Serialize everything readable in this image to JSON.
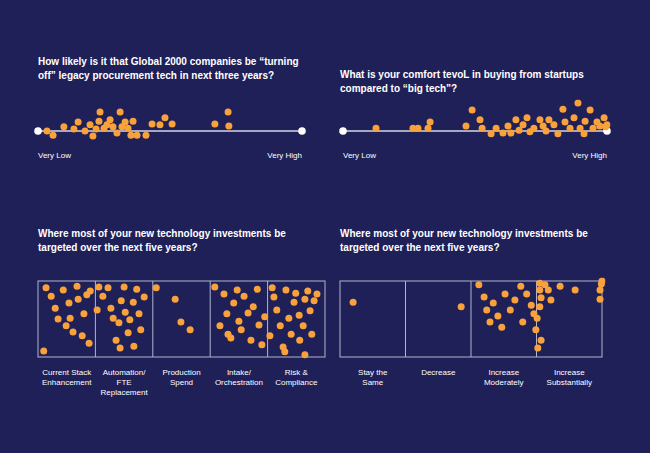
{
  "chart_data": [
    {
      "type": "scatter",
      "title": "How likely is it that Global 2000 companies be “turning off” legacy procurement tech in next three years?",
      "x": [
        3.4,
        5.7,
        9.8,
        13.6,
        15.2,
        17.8,
        19.7,
        20.8,
        22.0,
        23.1,
        23.5,
        25.0,
        26.1,
        27.3,
        28.4,
        29.9,
        31.1,
        31.8,
        33.0,
        34.1,
        35.2,
        36.0,
        37.5,
        40.9,
        43.2,
        46.2,
        48.1,
        50.8,
        67.0,
        72.0,
        72.3
      ],
      "values": [
        0,
        -0.6,
        0.6,
        0.3,
        1.3,
        0,
        0.9,
        -0.7,
        0.3,
        1.4,
        2.7,
        0.4,
        0.9,
        1.6,
        0.6,
        -0.3,
        2.7,
        0.6,
        1.3,
        0.4,
        -0.6,
        1.4,
        -0.6,
        -0.6,
        1.0,
        0.9,
        1.9,
        1.0,
        1.0,
        2.7,
        0.7
      ],
      "color": "#f9a23b",
      "xlim": [
        0,
        100
      ],
      "xticks": [
        {
          "value": 0,
          "label": "Very Low"
        },
        {
          "value": 100,
          "label": "Very High"
        }
      ],
      "ylim": [
        -2,
        4
      ],
      "tick_labels": "x",
      "grid": false
    },
    {
      "type": "scatter",
      "title": "What is your comfort tevoL in buying from startups compared to “big tech”?",
      "x": [
        12.5,
        26.5,
        28.4,
        32.2,
        33.0,
        46.6,
        48.9,
        51.9,
        52.7,
        56.1,
        58.0,
        60.6,
        62.5,
        63.6,
        65.5,
        66.7,
        68.2,
        69.7,
        70.8,
        72.3,
        74.6,
        75.8,
        76.9,
        78.0,
        79.9,
        81.4,
        83.3,
        84.1,
        86.0,
        87.5,
        89.0,
        89.8,
        91.3,
        91.7,
        93.6,
        94.7,
        96.2,
        97.3,
        98.9,
        99.5,
        100
      ],
      "values": [
        0.4,
        0.4,
        0.4,
        0.4,
        1.3,
        0.7,
        3.0,
        1.6,
        0.4,
        -0.4,
        0.4,
        -0.3,
        0.7,
        -0.3,
        1.6,
        0.1,
        0.9,
        1.9,
        -0.1,
        0.4,
        1.6,
        0.7,
        0,
        1.6,
        0.9,
        -0.4,
        3.1,
        1.3,
        0.4,
        1.9,
        4.0,
        0.4,
        -0.4,
        1.4,
        3.0,
        0.4,
        1.3,
        0.7,
        1.9,
        0.6,
        0.9
      ],
      "color": "#f9a23b",
      "xlim": [
        0,
        100
      ],
      "xticks": [
        {
          "value": 0,
          "label": "Very Low"
        },
        {
          "value": 100,
          "label": "Very High"
        }
      ],
      "ylim": [
        -2,
        4
      ],
      "tick_labels": "x",
      "grid": false
    },
    {
      "type": "strip",
      "title": "Where most of your new technology investments be targeted over the next five years?",
      "x": [
        0.1,
        0.14,
        0.23,
        0.3,
        0.35,
        0.44,
        0.49,
        0.54,
        0.56,
        0.61,
        0.68,
        0.7,
        0.77,
        0.8,
        0.85,
        0.89,
        0.91,
        1.06,
        1.13,
        1.22,
        1.27,
        1.31,
        1.36,
        1.41,
        1.45,
        1.5,
        1.52,
        1.57,
        1.6,
        1.66,
        1.67,
        1.72,
        1.76,
        1.79,
        1.85,
        1.03,
        1.43,
        2.06,
        2.39,
        2.49,
        2.65,
        3.08,
        3.17,
        3.24,
        3.29,
        3.36,
        3.41,
        3.47,
        3.5,
        3.54,
        3.59,
        3.66,
        3.71,
        3.75,
        3.82,
        3.85,
        3.9,
        3.95,
        3.31,
        4.08,
        4.11,
        4.16,
        4.22,
        4.27,
        4.32,
        4.37,
        4.41,
        4.46,
        4.49,
        4.55,
        4.56,
        4.62,
        4.65,
        4.7,
        4.74,
        4.77,
        4.81,
        4.86,
        4.3,
        4.04,
        4.65
      ],
      "values": [
        0.08,
        0.91,
        0.8,
        0.64,
        0.5,
        0.88,
        0.41,
        0.71,
        0.51,
        0.33,
        0.93,
        0.76,
        0.28,
        0.57,
        0.82,
        0.18,
        0.87,
        0.92,
        0.8,
        0.91,
        0.64,
        0.51,
        0.22,
        0.45,
        0.74,
        0.92,
        0.59,
        0.32,
        0.49,
        0.72,
        0.14,
        0.89,
        0.57,
        0.36,
        0.79,
        0.62,
        0.12,
        0.91,
        0.76,
        0.46,
        0.36,
        0.92,
        0.41,
        0.83,
        0.57,
        0.25,
        0.71,
        0.88,
        0.47,
        0.36,
        0.8,
        0.58,
        0.22,
        0.66,
        0.89,
        0.42,
        0.16,
        0.53,
        0.3,
        0.91,
        0.79,
        0.62,
        0.41,
        0.13,
        0.88,
        0.51,
        0.3,
        0.72,
        0.84,
        0.55,
        0.22,
        0.41,
        0.76,
        0.87,
        0.61,
        0.3,
        0.74,
        0.83,
        0.07,
        0.28,
        0.03
      ],
      "color": "#f9a23b",
      "xlim": [
        0,
        5
      ],
      "xticks": [
        {
          "value": 0.5,
          "label": "Current Stack Enhancement"
        },
        {
          "value": 1.5,
          "label": "Automation/ FTE Replacement"
        },
        {
          "value": 2.5,
          "label": "Production Spend"
        },
        {
          "value": 3.5,
          "label": "Intake/ Orchestration"
        },
        {
          "value": 4.5,
          "label": "Risk & Compliance"
        }
      ],
      "ylim": [
        0,
        1
      ],
      "tick_labels": "x",
      "grid": false
    },
    {
      "type": "strip",
      "title": "Where most of your new technology investments be targeted over the next five years?",
      "x": [
        0.2,
        1.85,
        2.12,
        2.2,
        2.24,
        2.29,
        2.34,
        2.41,
        2.47,
        2.52,
        2.6,
        2.67,
        2.76,
        2.79,
        2.85,
        2.92,
        2.96,
        2.99,
        3.02,
        3.05,
        3.05,
        3.07,
        3.05,
        3.01,
        3.07,
        3.13,
        3.18,
        3.22,
        3.36,
        3.59,
        3.97,
        3.99,
        4.0,
        3.97
      ],
      "values": [
        0.72,
        0.66,
        0.95,
        0.79,
        0.62,
        0.46,
        0.71,
        0.54,
        0.39,
        0.83,
        0.62,
        0.75,
        0.93,
        0.46,
        0.83,
        0.68,
        0.57,
        0.36,
        0.12,
        0.97,
        0.88,
        0.78,
        0.66,
        0.51,
        0.22,
        0.95,
        0.88,
        0.75,
        0.93,
        0.88,
        0.88,
        0.96,
        1.0,
        0.76
      ],
      "color": "#f9a23b",
      "xlim": [
        0,
        4
      ],
      "xticks": [
        {
          "value": 0.5,
          "label": "Stay the Same"
        },
        {
          "value": 1.5,
          "label": "Decrease"
        },
        {
          "value": 2.5,
          "label": "Increase Moderately"
        },
        {
          "value": 3.5,
          "label": "Increase Substantially"
        }
      ],
      "ylim": [
        0,
        1
      ],
      "tick_labels": "x",
      "grid": false
    }
  ]
}
